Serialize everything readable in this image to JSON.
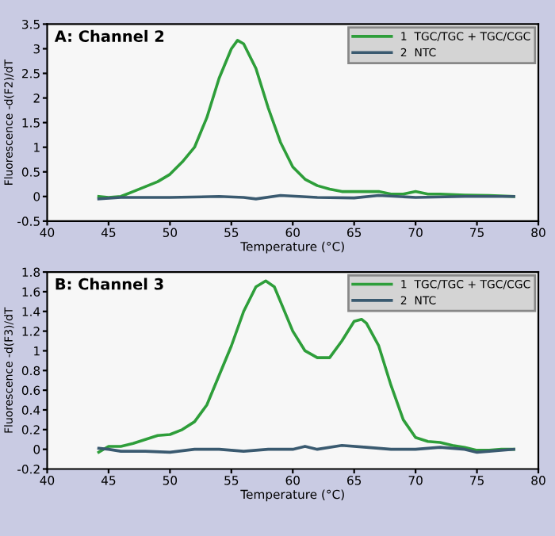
{
  "chart_data": [
    {
      "type": "line",
      "title": "A: Channel 2",
      "xlabel": "Temperature (°C)",
      "ylabel": "Fluorescence -d(F2)/dT",
      "legend": "top right",
      "grid": false,
      "marker": "none",
      "line_style": "solid",
      "xlim": [
        40,
        80
      ],
      "xticks": [
        40,
        45,
        50,
        55,
        60,
        65,
        70,
        75,
        80
      ],
      "ylim": [
        -0.5,
        3.5
      ],
      "yticks": [
        -0.5,
        0,
        0.5,
        1,
        1.5,
        2,
        2.5,
        3,
        3.5
      ],
      "series": [
        {
          "name": "1  TGC/TGC + TGC/CGC",
          "color": "#2e9e3a",
          "x": [
            44.2,
            45,
            46,
            47,
            48,
            49,
            50,
            51,
            52,
            53,
            54,
            55,
            55.5,
            56,
            57,
            58,
            59,
            60,
            61,
            62,
            63,
            64,
            65,
            66,
            67,
            68,
            69,
            70,
            71,
            72,
            74,
            76,
            78
          ],
          "values": [
            0.0,
            -0.02,
            0.0,
            0.1,
            0.2,
            0.3,
            0.45,
            0.7,
            1.0,
            1.6,
            2.4,
            3.0,
            3.17,
            3.1,
            2.6,
            1.8,
            1.1,
            0.6,
            0.35,
            0.22,
            0.15,
            0.1,
            0.1,
            0.1,
            0.1,
            0.05,
            0.05,
            0.1,
            0.05,
            0.05,
            0.03,
            0.02,
            0.0
          ]
        },
        {
          "name": "2  NTC",
          "color": "#3a5a70",
          "x": [
            44.2,
            46,
            50,
            54,
            56,
            57,
            59,
            62,
            65,
            67,
            70,
            74,
            78
          ],
          "values": [
            -0.05,
            -0.02,
            -0.02,
            0.0,
            -0.02,
            -0.05,
            0.02,
            -0.02,
            -0.03,
            0.02,
            -0.02,
            0.0,
            0.0
          ]
        }
      ]
    },
    {
      "type": "line",
      "title": "B: Channel 3",
      "xlabel": "Temperature (°C)",
      "ylabel": "Fluorescence -d(F3)/dT",
      "legend": "top right",
      "grid": false,
      "marker": "none",
      "line_style": "solid",
      "xlim": [
        40,
        80
      ],
      "xticks": [
        40,
        45,
        50,
        55,
        60,
        65,
        70,
        75,
        80
      ],
      "ylim": [
        -0.2,
        1.8
      ],
      "yticks": [
        -0.2,
        0,
        0.2,
        0.4,
        0.6,
        0.8,
        1,
        1.2,
        1.4,
        1.6,
        1.8
      ],
      "series": [
        {
          "name": "1  TGC/TGC + TGC/CGC",
          "color": "#2e9e3a",
          "x": [
            44.2,
            45,
            46,
            47,
            48,
            49,
            50,
            51,
            52,
            53,
            54,
            55,
            56,
            57,
            57.8,
            58.5,
            59,
            60,
            61,
            62,
            63,
            64,
            65,
            65.6,
            66,
            67,
            68,
            69,
            70,
            71,
            72,
            73,
            74,
            75,
            76,
            77,
            78
          ],
          "values": [
            -0.03,
            0.03,
            0.03,
            0.06,
            0.1,
            0.14,
            0.15,
            0.2,
            0.28,
            0.45,
            0.75,
            1.05,
            1.4,
            1.65,
            1.71,
            1.65,
            1.5,
            1.2,
            1.0,
            0.93,
            0.93,
            1.1,
            1.3,
            1.32,
            1.28,
            1.05,
            0.65,
            0.3,
            0.12,
            0.08,
            0.07,
            0.04,
            0.02,
            -0.01,
            -0.01,
            0.0,
            0.0
          ]
        },
        {
          "name": "2  NTC",
          "color": "#3a5a70",
          "x": [
            44.2,
            45,
            46,
            48,
            50,
            52,
            54,
            56,
            58,
            60,
            61,
            62,
            64,
            66,
            68,
            70,
            72,
            74,
            75,
            76,
            78
          ],
          "values": [
            0.01,
            0.0,
            -0.02,
            -0.02,
            -0.03,
            0.0,
            0.0,
            -0.02,
            0.0,
            0.0,
            0.03,
            0.0,
            0.04,
            0.02,
            0.0,
            0.0,
            0.02,
            0.0,
            -0.03,
            -0.02,
            0.0
          ]
        }
      ]
    }
  ]
}
